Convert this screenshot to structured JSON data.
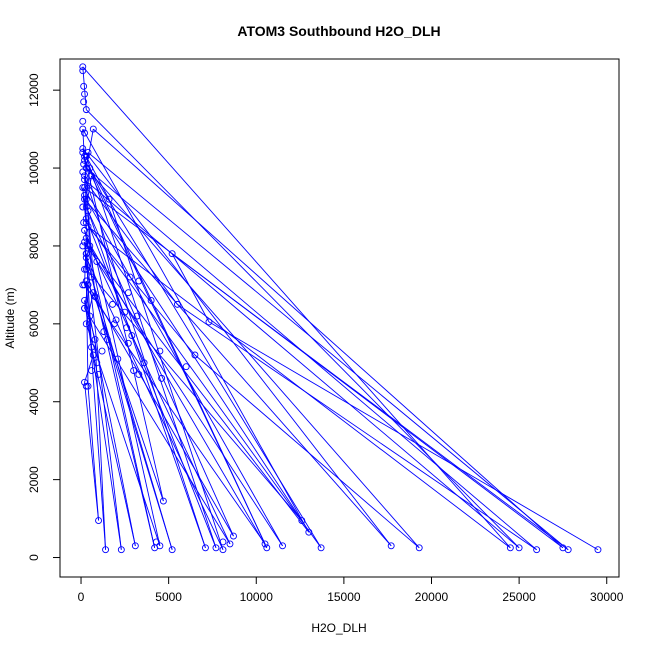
{
  "chart_data": {
    "type": "line",
    "title": "ATOM3 Southbound H2O_DLH",
    "xlabel": "H2O_DLH",
    "ylabel": "Altitude (m)",
    "xlim": [
      -1200,
      30700
    ],
    "ylim": [
      -500,
      12800
    ],
    "xticks": [
      0,
      5000,
      10000,
      15000,
      20000,
      25000,
      30000
    ],
    "yticks": [
      0,
      2000,
      4000,
      6000,
      8000,
      10000,
      12000
    ],
    "grid": false,
    "legend": "none",
    "marker": "open-circle",
    "line_color": "#0000FF",
    "series": [
      {
        "values": [
          {
            "x": 29500,
            "y": 200
          },
          {
            "x": 7300,
            "y": 6050
          },
          {
            "x": 5200,
            "y": 7800
          },
          {
            "x": 27800,
            "y": 200
          },
          {
            "x": 400,
            "y": 10400
          },
          {
            "x": 200,
            "y": 9500
          },
          {
            "x": 27500,
            "y": 250
          },
          {
            "x": 700,
            "y": 11000
          },
          {
            "x": 300,
            "y": 10000
          },
          {
            "x": 26000,
            "y": 200
          },
          {
            "x": 5500,
            "y": 6500
          },
          {
            "x": 200,
            "y": 9700
          },
          {
            "x": 25000,
            "y": 250
          },
          {
            "x": 300,
            "y": 11500
          },
          {
            "x": 100,
            "y": 12600
          },
          {
            "x": 24500,
            "y": 250
          },
          {
            "x": 400,
            "y": 8500
          },
          {
            "x": 6500,
            "y": 5200
          },
          {
            "x": 19300,
            "y": 250
          },
          {
            "x": 300,
            "y": 10000
          },
          {
            "x": 100,
            "y": 10500
          },
          {
            "x": 17700,
            "y": 300
          },
          {
            "x": 200,
            "y": 9200
          },
          {
            "x": 300,
            "y": 8600
          },
          {
            "x": 13700,
            "y": 250
          },
          {
            "x": 200,
            "y": 10200
          },
          {
            "x": 100,
            "y": 11000
          },
          {
            "x": 13000,
            "y": 650
          },
          {
            "x": 400,
            "y": 8000
          },
          {
            "x": 100,
            "y": 9500
          },
          {
            "x": 12600,
            "y": 950
          },
          {
            "x": 300,
            "y": 7400
          },
          {
            "x": 200,
            "y": 8100
          },
          {
            "x": 11500,
            "y": 300
          },
          {
            "x": 300,
            "y": 9200
          },
          {
            "x": 500,
            "y": 10000
          },
          {
            "x": 10600,
            "y": 250
          },
          {
            "x": 300,
            "y": 8200
          },
          {
            "x": 200,
            "y": 7000
          },
          {
            "x": 10500,
            "y": 350
          },
          {
            "x": 600,
            "y": 9800
          },
          {
            "x": 300,
            "y": 9000
          },
          {
            "x": 8700,
            "y": 550
          },
          {
            "x": 400,
            "y": 7000
          },
          {
            "x": 200,
            "y": 6400
          },
          {
            "x": 8500,
            "y": 350
          },
          {
            "x": 500,
            "y": 8000
          },
          {
            "x": 300,
            "y": 7700
          },
          {
            "x": 8100,
            "y": 200
          },
          {
            "x": 1600,
            "y": 9200
          },
          {
            "x": 300,
            "y": 10300
          },
          {
            "x": 7700,
            "y": 250
          },
          {
            "x": 300,
            "y": 8700
          },
          {
            "x": 200,
            "y": 9800
          },
          {
            "x": 7100,
            "y": 250
          },
          {
            "x": 400,
            "y": 8900
          },
          {
            "x": 800,
            "y": 6700
          },
          {
            "x": 5200,
            "y": 200
          },
          {
            "x": 600,
            "y": 7200
          },
          {
            "x": 200,
            "y": 10300
          },
          {
            "x": 4700,
            "y": 1450
          },
          {
            "x": 700,
            "y": 6800
          },
          {
            "x": 300,
            "y": 6000
          },
          {
            "x": 4500,
            "y": 300
          },
          {
            "x": 900,
            "y": 7600
          },
          {
            "x": 200,
            "y": 8400
          },
          {
            "x": 4200,
            "y": 250
          },
          {
            "x": 300,
            "y": 7800
          },
          {
            "x": 500,
            "y": 6200
          },
          {
            "x": 3100,
            "y": 300
          },
          {
            "x": 600,
            "y": 5400
          },
          {
            "x": 300,
            "y": 7800
          },
          {
            "x": 2300,
            "y": 200
          },
          {
            "x": 200,
            "y": 6600
          },
          {
            "x": 800,
            "y": 5600
          },
          {
            "x": 1400,
            "y": 200
          },
          {
            "x": 300,
            "y": 7100
          },
          {
            "x": 400,
            "y": 4400
          },
          {
            "x": 1000,
            "y": 950
          },
          {
            "x": 200,
            "y": 4500
          },
          {
            "x": 700,
            "y": 5200
          }
        ]
      }
    ],
    "scatter_points": [
      {
        "x": 100,
        "y": 12500
      },
      {
        "x": 150,
        "y": 12100
      },
      {
        "x": 200,
        "y": 11900
      },
      {
        "x": 150,
        "y": 11700
      },
      {
        "x": 100,
        "y": 11200
      },
      {
        "x": 200,
        "y": 10900
      },
      {
        "x": 100,
        "y": 10400
      },
      {
        "x": 150,
        "y": 10100
      },
      {
        "x": 100,
        "y": 9900
      },
      {
        "x": 200,
        "y": 9300
      },
      {
        "x": 100,
        "y": 9000
      },
      {
        "x": 150,
        "y": 8600
      },
      {
        "x": 100,
        "y": 8000
      },
      {
        "x": 200,
        "y": 7400
      },
      {
        "x": 100,
        "y": 7000
      },
      {
        "x": 200,
        "y": 6400
      },
      {
        "x": 2800,
        "y": 7200
      },
      {
        "x": 3300,
        "y": 7100
      },
      {
        "x": 4000,
        "y": 6600
      },
      {
        "x": 2700,
        "y": 6800
      },
      {
        "x": 1800,
        "y": 6500
      },
      {
        "x": 2500,
        "y": 6300
      },
      {
        "x": 3200,
        "y": 6200
      },
      {
        "x": 1900,
        "y": 6000
      },
      {
        "x": 2600,
        "y": 5900
      },
      {
        "x": 2900,
        "y": 5700
      },
      {
        "x": 2700,
        "y": 5500
      },
      {
        "x": 1500,
        "y": 5600
      },
      {
        "x": 4500,
        "y": 5300
      },
      {
        "x": 6000,
        "y": 4900
      },
      {
        "x": 3600,
        "y": 5000
      },
      {
        "x": 3000,
        "y": 4800
      },
      {
        "x": 3300,
        "y": 4700
      },
      {
        "x": 4600,
        "y": 4600
      },
      {
        "x": 2100,
        "y": 5100
      },
      {
        "x": 1200,
        "y": 5300
      },
      {
        "x": 900,
        "y": 5000
      },
      {
        "x": 1000,
        "y": 4700
      },
      {
        "x": 600,
        "y": 4800
      },
      {
        "x": 300,
        "y": 4400
      },
      {
        "x": 8100,
        "y": 400
      },
      {
        "x": 4300,
        "y": 400
      },
      {
        "x": 1300,
        "y": 5800
      },
      {
        "x": 2000,
        "y": 6100
      }
    ]
  }
}
